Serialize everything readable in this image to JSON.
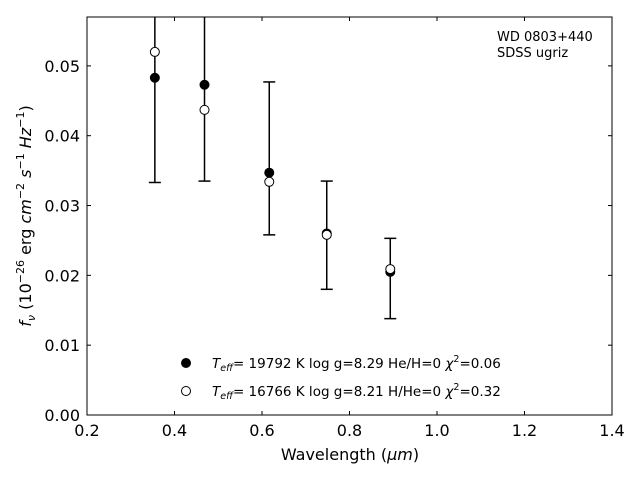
{
  "chart_data": {
    "type": "scatter",
    "xlabel_main": "Wavelength (",
    "xlabel_unit": "μm",
    "xlabel_close": ")",
    "ylabel": {
      "f": "f",
      "nu": "ν",
      "part1": " (10",
      "exp1": "−26",
      "part2": " erg ",
      "cm": "cm",
      "exp2": "−2",
      "s": "s",
      "exp3": "−1",
      "hz": "Hz",
      "exp4": "−1",
      "close": ")"
    },
    "xlim": [
      0.2,
      1.4
    ],
    "ylim": [
      0.0,
      0.057
    ],
    "xticks": [
      {
        "v": 0.2,
        "label": "0.2"
      },
      {
        "v": 0.4,
        "label": "0.4"
      },
      {
        "v": 0.6,
        "label": "0.6"
      },
      {
        "v": 0.8,
        "label": "0.8"
      },
      {
        "v": 1.0,
        "label": "1.0"
      },
      {
        "v": 1.2,
        "label": "1.2"
      },
      {
        "v": 1.4,
        "label": "1.4"
      }
    ],
    "yticks": [
      {
        "v": 0.0,
        "label": "0.00"
      },
      {
        "v": 0.01,
        "label": "0.01"
      },
      {
        "v": 0.02,
        "label": "0.02"
      },
      {
        "v": 0.03,
        "label": "0.03"
      },
      {
        "v": 0.04,
        "label": "0.04"
      },
      {
        "v": 0.05,
        "label": "0.05"
      }
    ],
    "annotation": [
      "WD 0803+440",
      "SDSS ugriz"
    ],
    "observed": [
      {
        "band": "u",
        "x": 0.3551,
        "y": 0.0483,
        "yerr_low": 0.0333,
        "yerr_high": 0.0633
      },
      {
        "band": "g",
        "x": 0.4686,
        "y": 0.0473,
        "yerr_low": 0.0335,
        "yerr_high": 0.0611
      },
      {
        "band": "r",
        "x": 0.6166,
        "y": 0.0347,
        "yerr_low": 0.0258,
        "yerr_high": 0.0477
      },
      {
        "band": "i",
        "x": 0.748,
        "y": 0.026,
        "yerr_low": 0.018,
        "yerr_high": 0.0335
      },
      {
        "band": "z",
        "x": 0.8932,
        "y": 0.0205,
        "yerr_low": 0.0138,
        "yerr_high": 0.0253
      }
    ],
    "series": [
      {
        "marker": "filled",
        "legend_teff": "T",
        "legend_teff_sub": "eff",
        "legend_rest": "= 19792 K  log g=8.29  He/H=0  ",
        "legend_chi": "χ",
        "legend_chi_sup": "2",
        "legend_chi_val": "=0.06",
        "x": [
          0.3551,
          0.4686,
          0.6166,
          0.748,
          0.8932
        ],
        "values": [
          0.0483,
          0.0473,
          0.0347,
          0.026,
          0.0205
        ]
      },
      {
        "marker": "open",
        "legend_teff": "T",
        "legend_teff_sub": "eff",
        "legend_rest": "= 16766 K  log g=8.21  H/He=0  ",
        "legend_chi": "χ",
        "legend_chi_sup": "2",
        "legend_chi_val": "=0.32",
        "x": [
          0.3551,
          0.4686,
          0.6166,
          0.748,
          0.8932
        ],
        "values": [
          0.052,
          0.0437,
          0.0334,
          0.0258,
          0.0209
        ]
      }
    ],
    "grid": false,
    "legend_position": "bottom-center"
  }
}
